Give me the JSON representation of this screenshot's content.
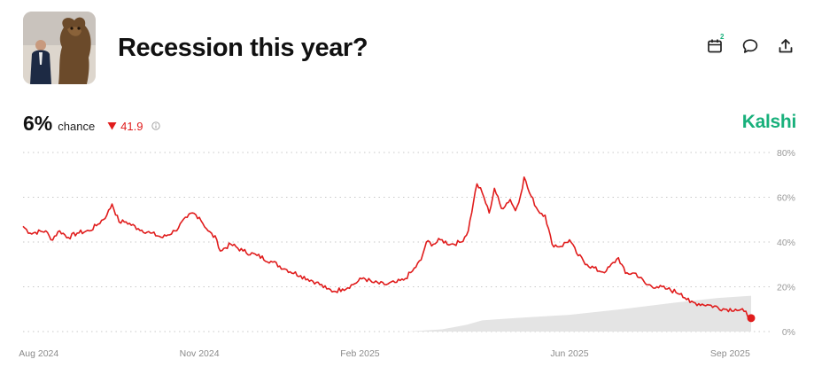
{
  "header": {
    "title": "Recession this year?",
    "icons": [
      "calendar-icon",
      "comment-icon",
      "share-icon"
    ],
    "calendar_badge": "2"
  },
  "stats": {
    "probability": "6%",
    "probability_label": "chance",
    "change": "41.9",
    "change_direction": "down"
  },
  "brand": "Kalshi",
  "colors": {
    "line": "#e01c1c",
    "brand": "#18b07b",
    "volume": "#e4e4e4",
    "grid": "#c8c8c8"
  },
  "chart_data": {
    "type": "line",
    "title": "",
    "xlabel": "",
    "ylabel": "",
    "ylim": [
      0,
      80
    ],
    "y_ticks": [
      "0%",
      "20%",
      "40%",
      "60%",
      "80%"
    ],
    "x_ticks": [
      {
        "label": "Aug 2024",
        "date": "2024-08-01"
      },
      {
        "label": "Nov 2024",
        "date": "2024-11-01"
      },
      {
        "label": "Feb 2025",
        "date": "2025-02-01"
      },
      {
        "label": "Jun 2025",
        "date": "2025-06-01"
      },
      {
        "label": "Sep 2025",
        "date": "2025-09-01"
      }
    ],
    "grid": true,
    "series": [
      {
        "values": [
          [
            "2024-07-23",
            47
          ],
          [
            "2024-07-27",
            44
          ],
          [
            "2024-08-05",
            45
          ],
          [
            "2024-08-08",
            41
          ],
          [
            "2024-08-13",
            45
          ],
          [
            "2024-08-18",
            42
          ],
          [
            "2024-08-23",
            44
          ],
          [
            "2024-08-30",
            45
          ],
          [
            "2024-09-04",
            48
          ],
          [
            "2024-09-09",
            52
          ],
          [
            "2024-09-12",
            57
          ],
          [
            "2024-09-16",
            49
          ],
          [
            "2024-09-20",
            49
          ],
          [
            "2024-09-27",
            46
          ],
          [
            "2024-10-04",
            44
          ],
          [
            "2024-10-11",
            42
          ],
          [
            "2024-10-18",
            45
          ],
          [
            "2024-10-25",
            51
          ],
          [
            "2024-10-28",
            53
          ],
          [
            "2024-11-01",
            51
          ],
          [
            "2024-11-06",
            45
          ],
          [
            "2024-11-11",
            41
          ],
          [
            "2024-11-13",
            36
          ],
          [
            "2024-11-19",
            39
          ],
          [
            "2024-11-26",
            36
          ],
          [
            "2024-12-04",
            34
          ],
          [
            "2024-12-13",
            31
          ],
          [
            "2024-12-20",
            28
          ],
          [
            "2024-12-29",
            25
          ],
          [
            "2025-01-07",
            22
          ],
          [
            "2025-01-13",
            19
          ],
          [
            "2025-01-17",
            18
          ],
          [
            "2025-01-22",
            19
          ],
          [
            "2025-01-28",
            21
          ],
          [
            "2025-02-03",
            24
          ],
          [
            "2025-02-08",
            22
          ],
          [
            "2025-02-15",
            21
          ],
          [
            "2025-02-22",
            22
          ],
          [
            "2025-02-26",
            23
          ],
          [
            "2025-03-03",
            27
          ],
          [
            "2025-03-08",
            32
          ],
          [
            "2025-03-11",
            40
          ],
          [
            "2025-03-15",
            39
          ],
          [
            "2025-03-19",
            41
          ],
          [
            "2025-03-25",
            39
          ],
          [
            "2025-03-31",
            40
          ],
          [
            "2025-04-04",
            45
          ],
          [
            "2025-04-07",
            58
          ],
          [
            "2025-04-09",
            66
          ],
          [
            "2025-04-12",
            62
          ],
          [
            "2025-04-16",
            53
          ],
          [
            "2025-04-19",
            64
          ],
          [
            "2025-04-23",
            55
          ],
          [
            "2025-04-28",
            59
          ],
          [
            "2025-05-01",
            54
          ],
          [
            "2025-05-04",
            61
          ],
          [
            "2025-05-06",
            69
          ],
          [
            "2025-05-09",
            62
          ],
          [
            "2025-05-14",
            54
          ],
          [
            "2025-05-18",
            52
          ],
          [
            "2025-05-22",
            39
          ],
          [
            "2025-05-27",
            38
          ],
          [
            "2025-06-01",
            41
          ],
          [
            "2025-06-05",
            35
          ],
          [
            "2025-06-11",
            30
          ],
          [
            "2025-06-18",
            27
          ],
          [
            "2025-06-22",
            27
          ],
          [
            "2025-06-29",
            33
          ],
          [
            "2025-07-03",
            26
          ],
          [
            "2025-07-09",
            26
          ],
          [
            "2025-07-15",
            21
          ],
          [
            "2025-07-21",
            20
          ],
          [
            "2025-07-27",
            19
          ],
          [
            "2025-08-04",
            17
          ],
          [
            "2025-08-09",
            13
          ],
          [
            "2025-08-19",
            12
          ],
          [
            "2025-08-29",
            10
          ],
          [
            "2025-09-04",
            10
          ],
          [
            "2025-09-09",
            9
          ],
          [
            "2025-09-13",
            6
          ]
        ]
      }
    ],
    "volume": {
      "values": [
        [
          "2024-07-23",
          0
        ],
        [
          "2025-02-28",
          0
        ],
        [
          "2025-03-20",
          1
        ],
        [
          "2025-04-03",
          3
        ],
        [
          "2025-04-12",
          5
        ],
        [
          "2025-05-01",
          6
        ],
        [
          "2025-06-01",
          7.5
        ],
        [
          "2025-07-01",
          10
        ],
        [
          "2025-08-01",
          13
        ],
        [
          "2025-08-25",
          15
        ],
        [
          "2025-09-13",
          16
        ]
      ]
    }
  }
}
